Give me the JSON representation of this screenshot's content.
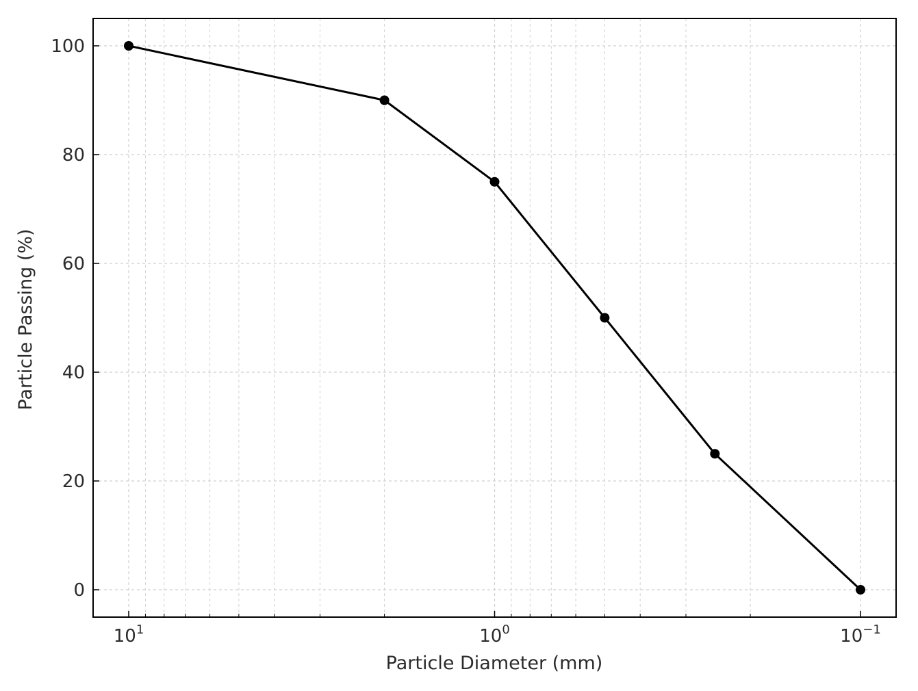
{
  "chart_data": {
    "type": "line",
    "title": "",
    "xlabel": "Particle Diameter (mm)",
    "ylabel": "Particle Passing (%)",
    "x_scale": "log",
    "x_axis_inverted": true,
    "xlim": [
      12,
      0.082
    ],
    "ylim": [
      -5,
      105
    ],
    "grid": true,
    "grid_style": "dashed",
    "series": [
      {
        "color": "#000000",
        "marker": "circle",
        "x": [
          10,
          2,
          1,
          0.5,
          0.25,
          0.1
        ],
        "y": [
          100,
          90,
          75,
          50,
          25,
          0
        ]
      }
    ],
    "x_ticks": [
      {
        "value": 10,
        "base": "10",
        "exp": "1"
      },
      {
        "value": 1,
        "base": "10",
        "exp": "0"
      },
      {
        "value": 0.1,
        "base": "10",
        "exp": "−1"
      }
    ],
    "y_ticks": [
      {
        "value": 0,
        "label": "0"
      },
      {
        "value": 20,
        "label": "20"
      },
      {
        "value": 40,
        "label": "40"
      },
      {
        "value": 60,
        "label": "60"
      },
      {
        "value": 80,
        "label": "80"
      },
      {
        "value": 100,
        "label": "100"
      }
    ]
  }
}
